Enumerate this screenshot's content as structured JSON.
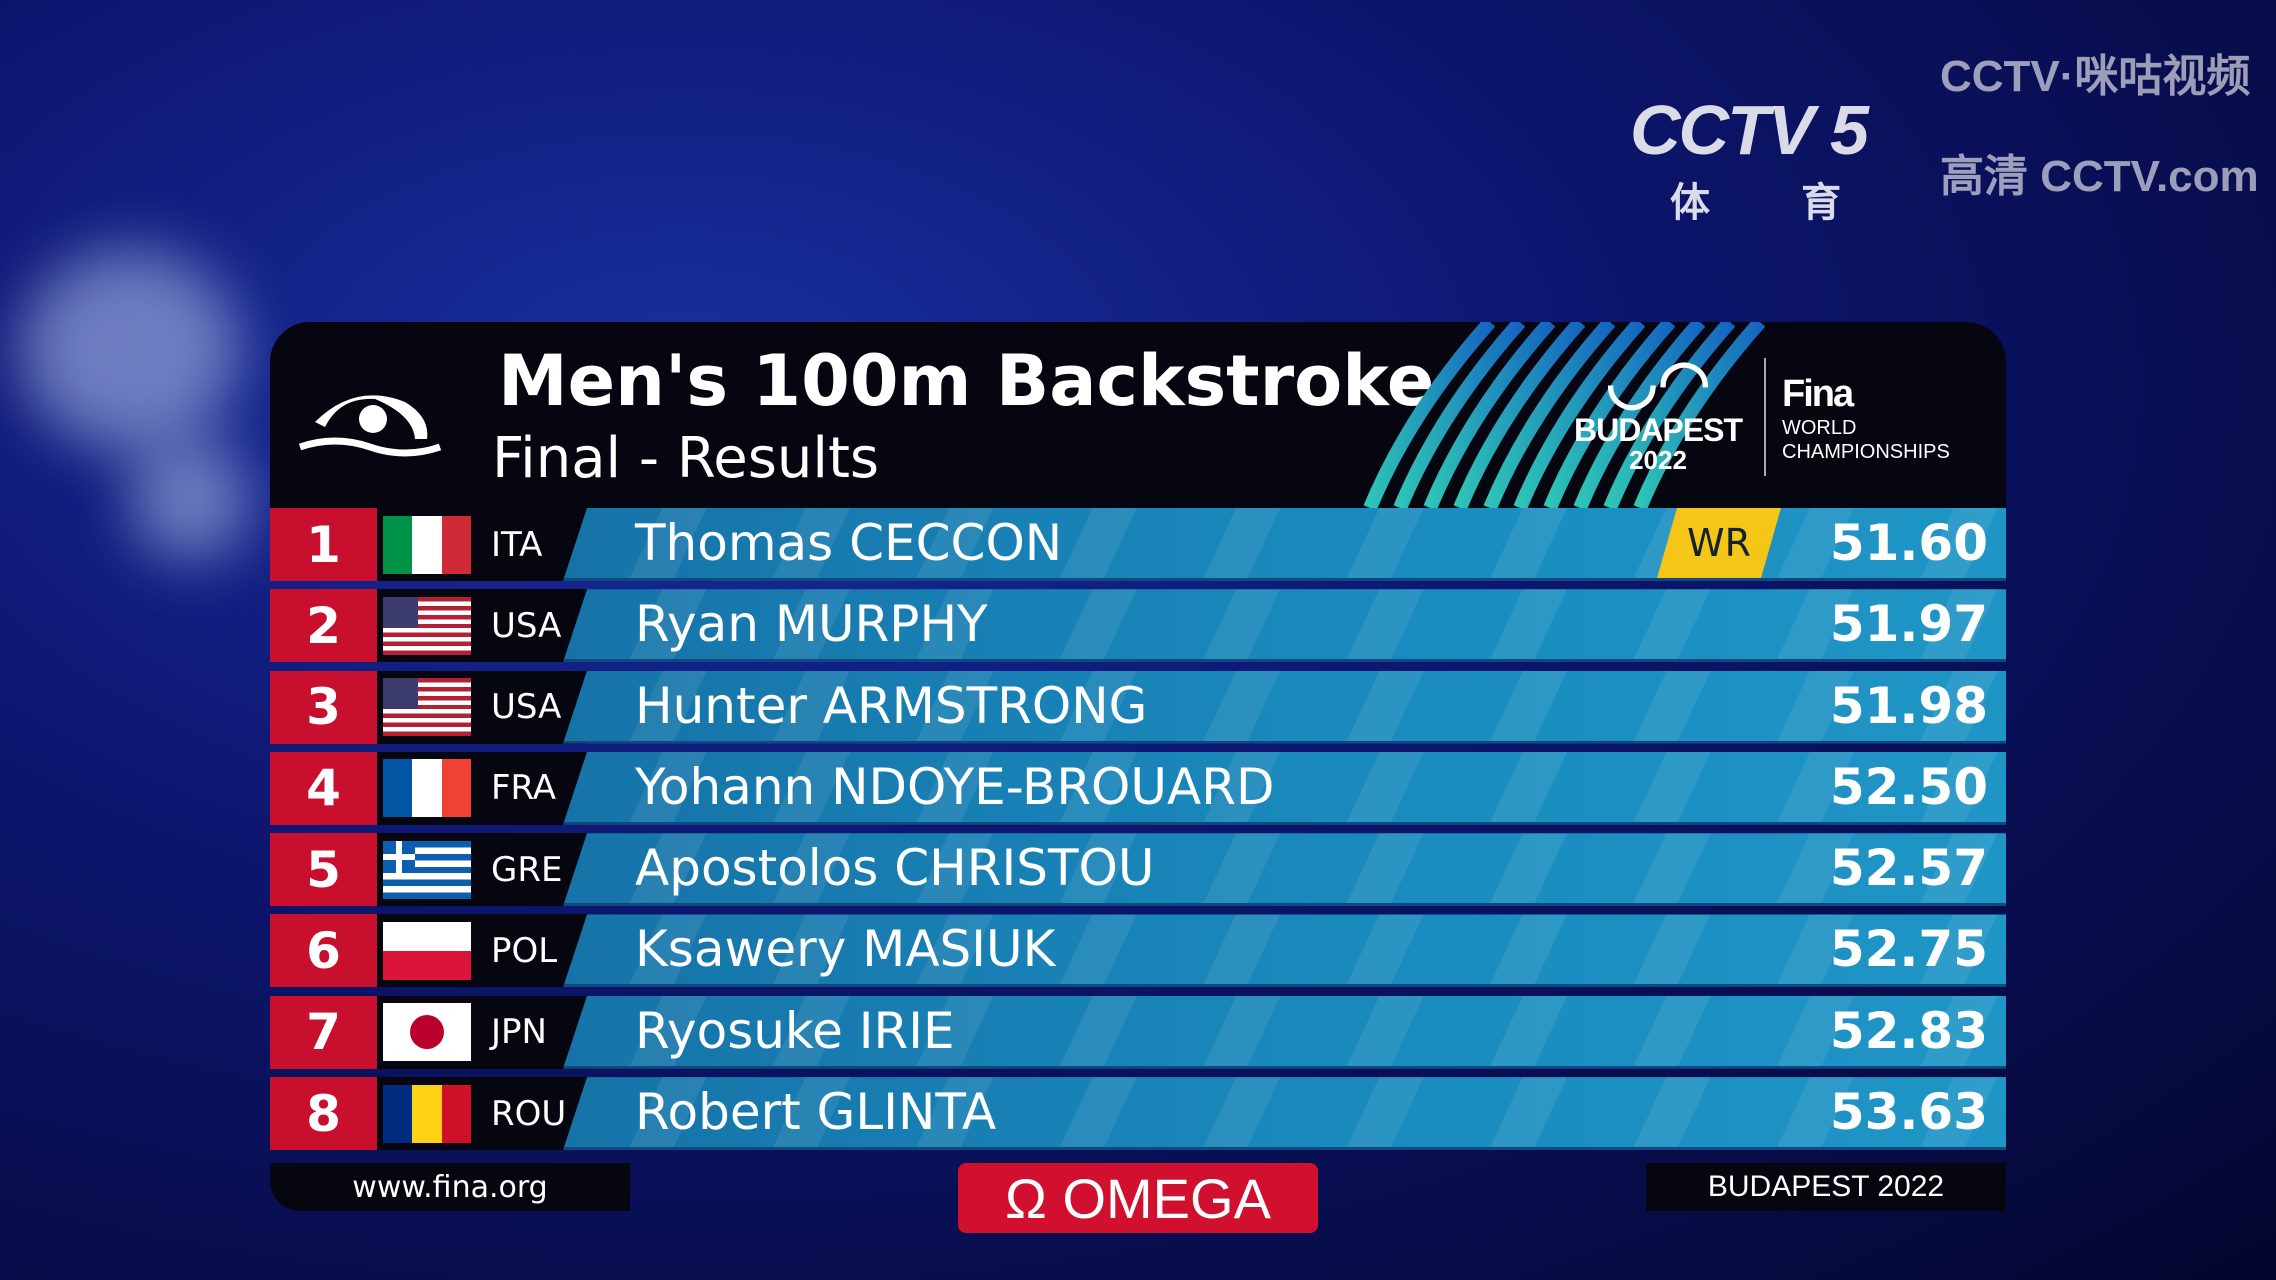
{
  "broadcaster": {
    "channel": "CCTV 5",
    "channel_sub": "体 育",
    "watermark_1": "CCTV·咪咕视频",
    "watermark_2": "高清 CCTV.com"
  },
  "header": {
    "title": "Men's 100m Backstroke",
    "subtitle": "Final - Results",
    "logo": {
      "city": "BUDAPEST",
      "year": "2022",
      "org": "Fina",
      "org_line1": "WORLD",
      "org_line2": "CHAMPIONSHIPS"
    }
  },
  "results": [
    {
      "rank": "1",
      "flag": "ITA",
      "country": "ITA",
      "name": "Thomas CECCON",
      "time": "51.60",
      "record": "WR"
    },
    {
      "rank": "2",
      "flag": "USA",
      "country": "USA",
      "name": "Ryan MURPHY",
      "time": "51.97"
    },
    {
      "rank": "3",
      "flag": "USA",
      "country": "USA",
      "name": "Hunter ARMSTRONG",
      "time": "51.98"
    },
    {
      "rank": "4",
      "flag": "FRA",
      "country": "FRA",
      "name": "Yohann NDOYE-BROUARD",
      "time": "52.50"
    },
    {
      "rank": "5",
      "flag": "GRE",
      "country": "GRE",
      "name": "Apostolos CHRISTOU",
      "time": "52.57"
    },
    {
      "rank": "6",
      "flag": "POL",
      "country": "POL",
      "name": "Ksawery MASIUK",
      "time": "52.75"
    },
    {
      "rank": "7",
      "flag": "JPN",
      "country": "JPN",
      "name": "Ryosuke IRIE",
      "time": "52.83"
    },
    {
      "rank": "8",
      "flag": "ROU",
      "country": "ROU",
      "name": "Robert GLINTA",
      "time": "53.63"
    }
  ],
  "footer": {
    "url": "www.fina.org",
    "sponsor": "Ω OMEGA",
    "location": "BUDAPEST 2022"
  },
  "colors": {
    "rank_bg": "#c8102e",
    "bar": "#1a8cbf",
    "record_badge": "#f5c518",
    "panel": "#05060f"
  }
}
